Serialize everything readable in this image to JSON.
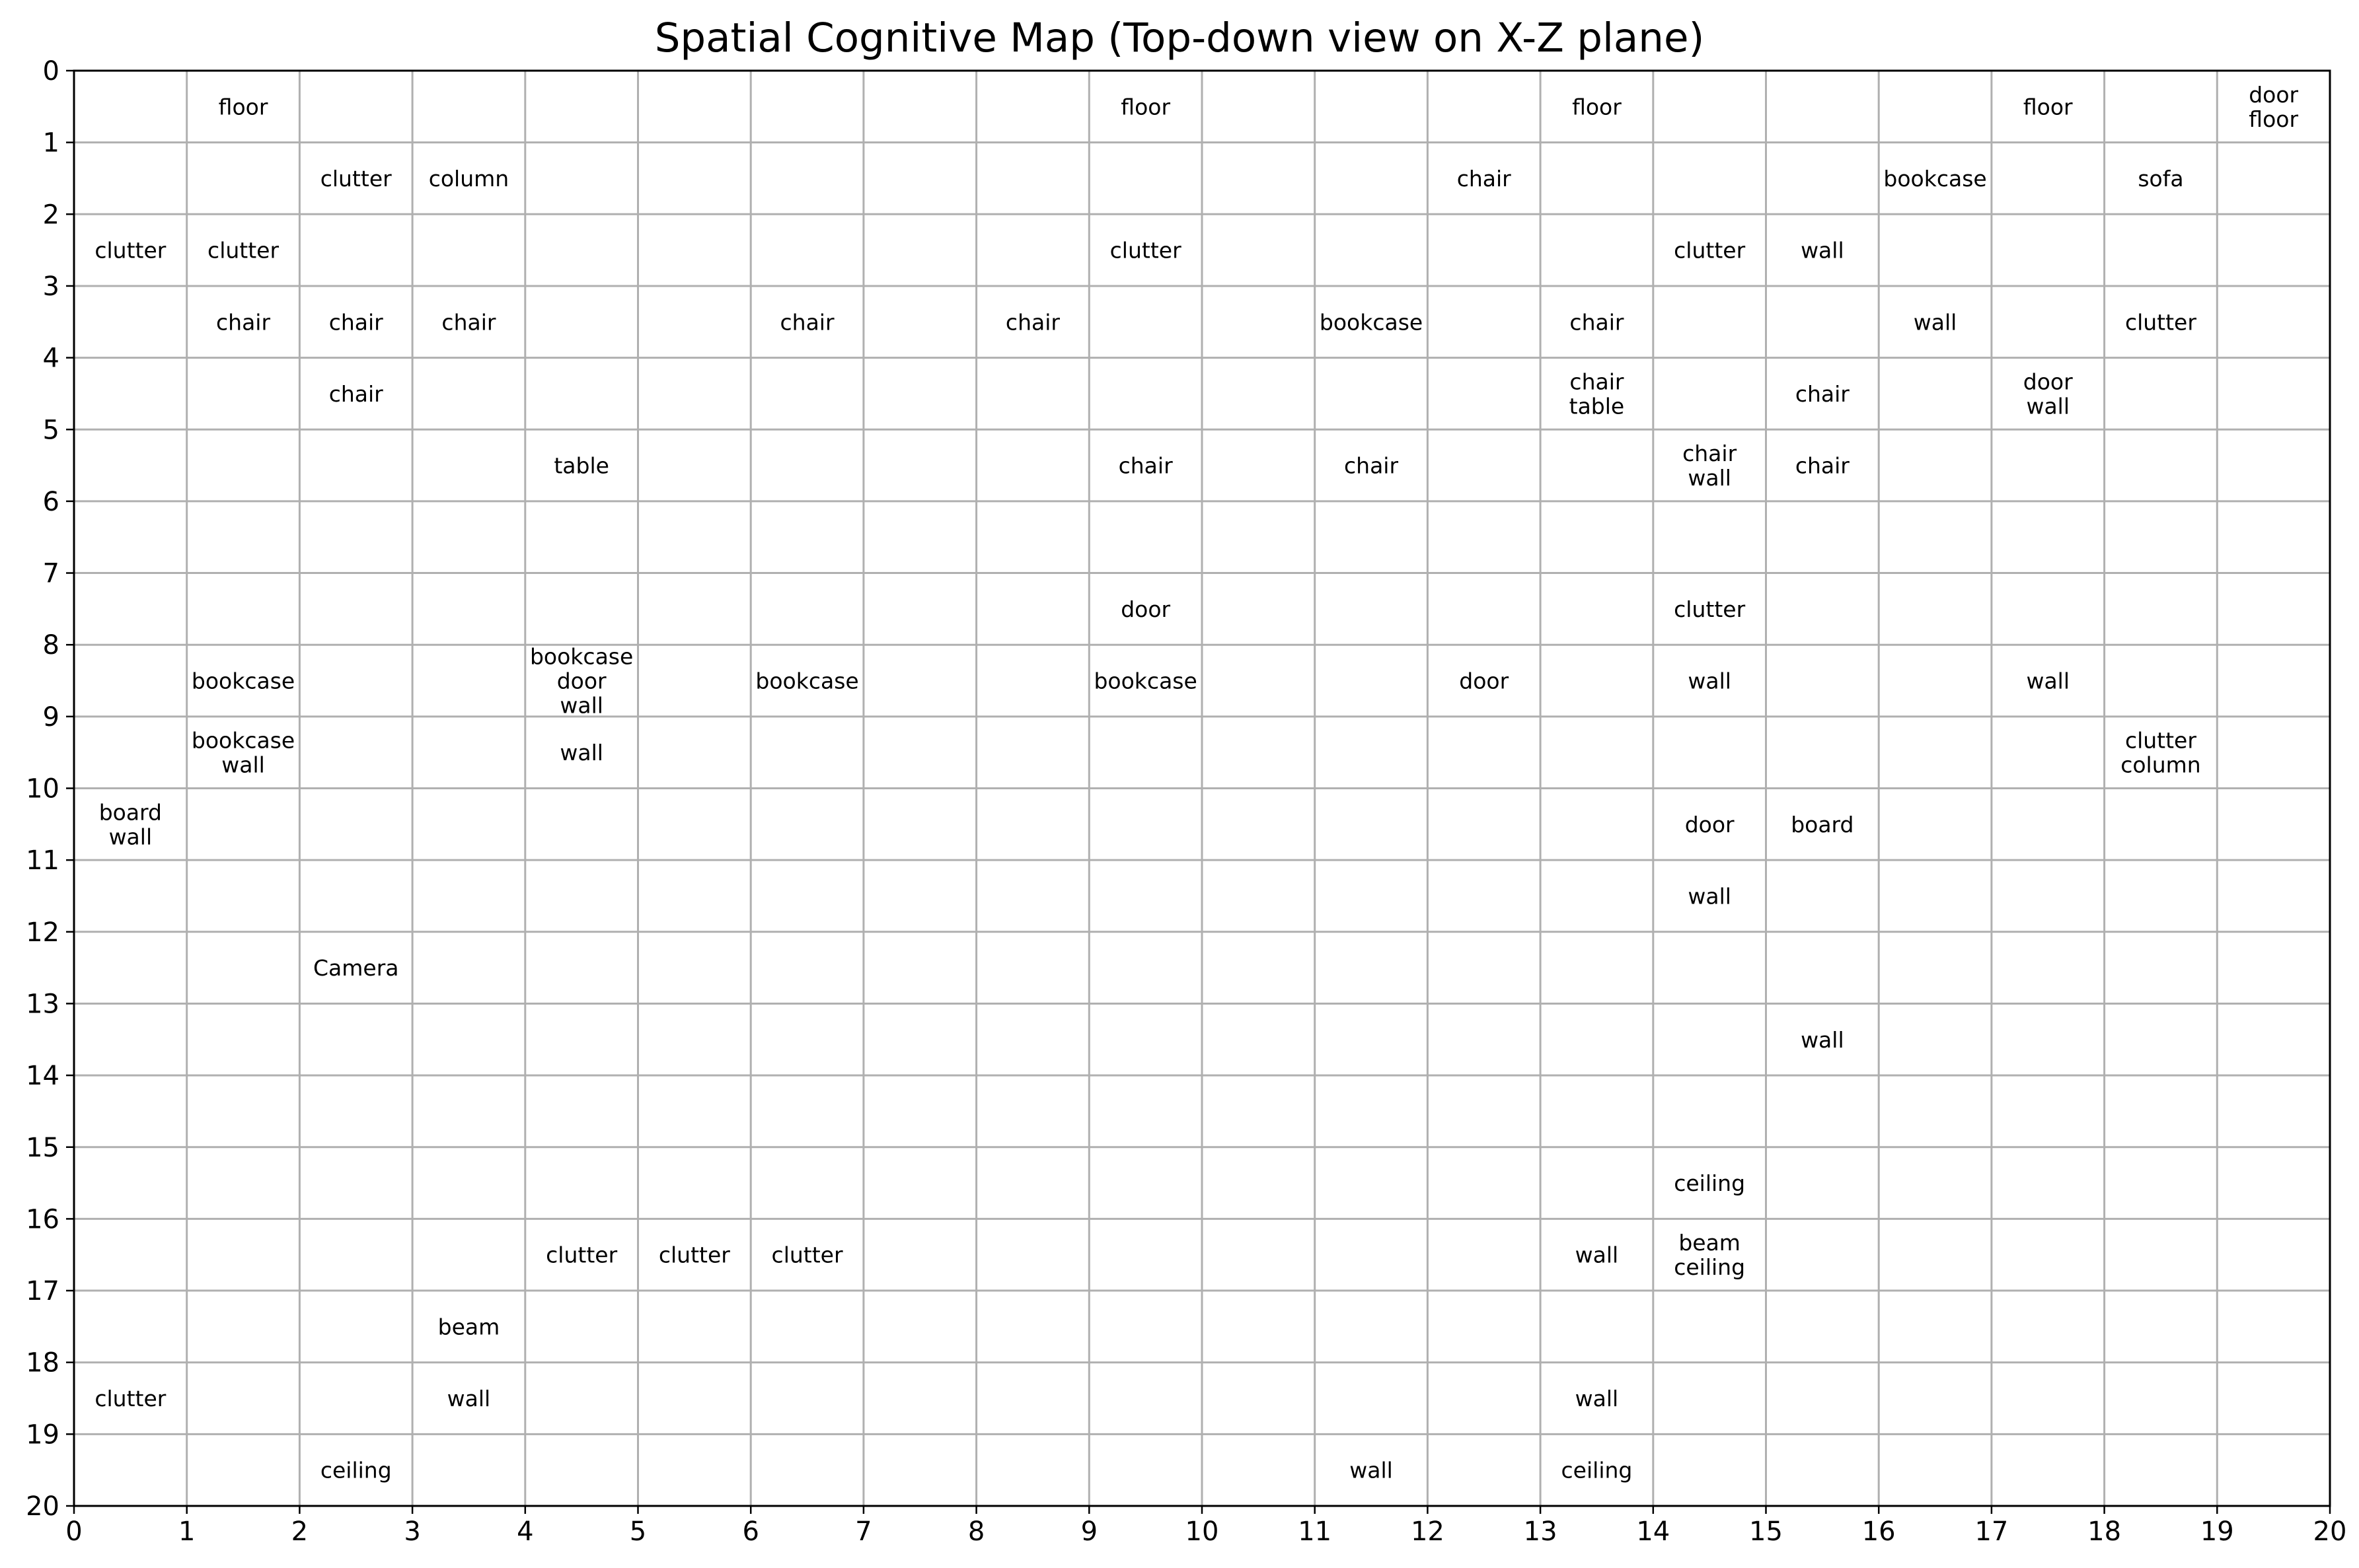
{
  "chart_data": {
    "type": "table",
    "title": "Spatial Cognitive Map (Top-down view on X-Z plane)",
    "xlim": [
      0,
      20
    ],
    "ylim": [
      0,
      20
    ],
    "y_axis_inverted": true,
    "grid": true,
    "x_ticks": [
      "0",
      "1",
      "2",
      "3",
      "4",
      "5",
      "6",
      "7",
      "8",
      "9",
      "10",
      "11",
      "12",
      "13",
      "14",
      "15",
      "16",
      "17",
      "18",
      "19",
      "20"
    ],
    "y_ticks": [
      "0",
      "1",
      "2",
      "3",
      "4",
      "5",
      "6",
      "7",
      "8",
      "9",
      "10",
      "11",
      "12",
      "13",
      "14",
      "15",
      "16",
      "17",
      "18",
      "19",
      "20"
    ],
    "cells": [
      {
        "x": 1,
        "z": 0,
        "labels": [
          "floor"
        ]
      },
      {
        "x": 9,
        "z": 0,
        "labels": [
          "floor"
        ]
      },
      {
        "x": 13,
        "z": 0,
        "labels": [
          "floor"
        ]
      },
      {
        "x": 17,
        "z": 0,
        "labels": [
          "floor"
        ]
      },
      {
        "x": 19,
        "z": 0,
        "labels": [
          "door",
          "floor"
        ]
      },
      {
        "x": 2,
        "z": 1,
        "labels": [
          "clutter"
        ]
      },
      {
        "x": 3,
        "z": 1,
        "labels": [
          "column"
        ]
      },
      {
        "x": 12,
        "z": 1,
        "labels": [
          "chair"
        ]
      },
      {
        "x": 16,
        "z": 1,
        "labels": [
          "bookcase"
        ]
      },
      {
        "x": 18,
        "z": 1,
        "labels": [
          "sofa"
        ]
      },
      {
        "x": 0,
        "z": 2,
        "labels": [
          "clutter"
        ]
      },
      {
        "x": 1,
        "z": 2,
        "labels": [
          "clutter"
        ]
      },
      {
        "x": 9,
        "z": 2,
        "labels": [
          "clutter"
        ]
      },
      {
        "x": 14,
        "z": 2,
        "labels": [
          "clutter"
        ]
      },
      {
        "x": 15,
        "z": 2,
        "labels": [
          "wall"
        ]
      },
      {
        "x": 1,
        "z": 3,
        "labels": [
          "chair"
        ]
      },
      {
        "x": 2,
        "z": 3,
        "labels": [
          "chair"
        ]
      },
      {
        "x": 3,
        "z": 3,
        "labels": [
          "chair"
        ]
      },
      {
        "x": 6,
        "z": 3,
        "labels": [
          "chair"
        ]
      },
      {
        "x": 8,
        "z": 3,
        "labels": [
          "chair"
        ]
      },
      {
        "x": 11,
        "z": 3,
        "labels": [
          "bookcase"
        ]
      },
      {
        "x": 13,
        "z": 3,
        "labels": [
          "chair"
        ]
      },
      {
        "x": 16,
        "z": 3,
        "labels": [
          "wall"
        ]
      },
      {
        "x": 18,
        "z": 3,
        "labels": [
          "clutter"
        ]
      },
      {
        "x": 2,
        "z": 4,
        "labels": [
          "chair"
        ]
      },
      {
        "x": 13,
        "z": 4,
        "labels": [
          "chair",
          "table"
        ]
      },
      {
        "x": 15,
        "z": 4,
        "labels": [
          "chair"
        ]
      },
      {
        "x": 17,
        "z": 4,
        "labels": [
          "door",
          "wall"
        ]
      },
      {
        "x": 4,
        "z": 5,
        "labels": [
          "table"
        ]
      },
      {
        "x": 9,
        "z": 5,
        "labels": [
          "chair"
        ]
      },
      {
        "x": 11,
        "z": 5,
        "labels": [
          "chair"
        ]
      },
      {
        "x": 14,
        "z": 5,
        "labels": [
          "chair",
          "wall"
        ]
      },
      {
        "x": 15,
        "z": 5,
        "labels": [
          "chair"
        ]
      },
      {
        "x": 9,
        "z": 7,
        "labels": [
          "door"
        ]
      },
      {
        "x": 14,
        "z": 7,
        "labels": [
          "clutter"
        ]
      },
      {
        "x": 1,
        "z": 8,
        "labels": [
          "bookcase"
        ]
      },
      {
        "x": 4,
        "z": 8,
        "labels": [
          "bookcase",
          "door",
          "wall"
        ]
      },
      {
        "x": 6,
        "z": 8,
        "labels": [
          "bookcase"
        ]
      },
      {
        "x": 9,
        "z": 8,
        "labels": [
          "bookcase"
        ]
      },
      {
        "x": 12,
        "z": 8,
        "labels": [
          "door"
        ]
      },
      {
        "x": 14,
        "z": 8,
        "labels": [
          "wall"
        ]
      },
      {
        "x": 17,
        "z": 8,
        "labels": [
          "wall"
        ]
      },
      {
        "x": 1,
        "z": 9,
        "labels": [
          "bookcase",
          "wall"
        ]
      },
      {
        "x": 4,
        "z": 9,
        "labels": [
          "wall"
        ]
      },
      {
        "x": 18,
        "z": 9,
        "labels": [
          "clutter",
          "column"
        ]
      },
      {
        "x": 0,
        "z": 10,
        "labels": [
          "board",
          "wall"
        ]
      },
      {
        "x": 14,
        "z": 10,
        "labels": [
          "door"
        ]
      },
      {
        "x": 15,
        "z": 10,
        "labels": [
          "board"
        ]
      },
      {
        "x": 14,
        "z": 11,
        "labels": [
          "wall"
        ]
      },
      {
        "x": 2,
        "z": 12,
        "labels": [
          "Camera"
        ]
      },
      {
        "x": 15,
        "z": 13,
        "labels": [
          "wall"
        ]
      },
      {
        "x": 14,
        "z": 15,
        "labels": [
          "ceiling"
        ]
      },
      {
        "x": 4,
        "z": 16,
        "labels": [
          "clutter"
        ]
      },
      {
        "x": 5,
        "z": 16,
        "labels": [
          "clutter"
        ]
      },
      {
        "x": 6,
        "z": 16,
        "labels": [
          "clutter"
        ]
      },
      {
        "x": 13,
        "z": 16,
        "labels": [
          "wall"
        ]
      },
      {
        "x": 14,
        "z": 16,
        "labels": [
          "beam",
          "ceiling"
        ]
      },
      {
        "x": 3,
        "z": 17,
        "labels": [
          "beam"
        ]
      },
      {
        "x": 0,
        "z": 18,
        "labels": [
          "clutter"
        ]
      },
      {
        "x": 3,
        "z": 18,
        "labels": [
          "wall"
        ]
      },
      {
        "x": 13,
        "z": 18,
        "labels": [
          "wall"
        ]
      },
      {
        "x": 2,
        "z": 19,
        "labels": [
          "ceiling"
        ]
      },
      {
        "x": 11,
        "z": 19,
        "labels": [
          "wall"
        ]
      },
      {
        "x": 13,
        "z": 19,
        "labels": [
          "ceiling"
        ]
      }
    ]
  }
}
